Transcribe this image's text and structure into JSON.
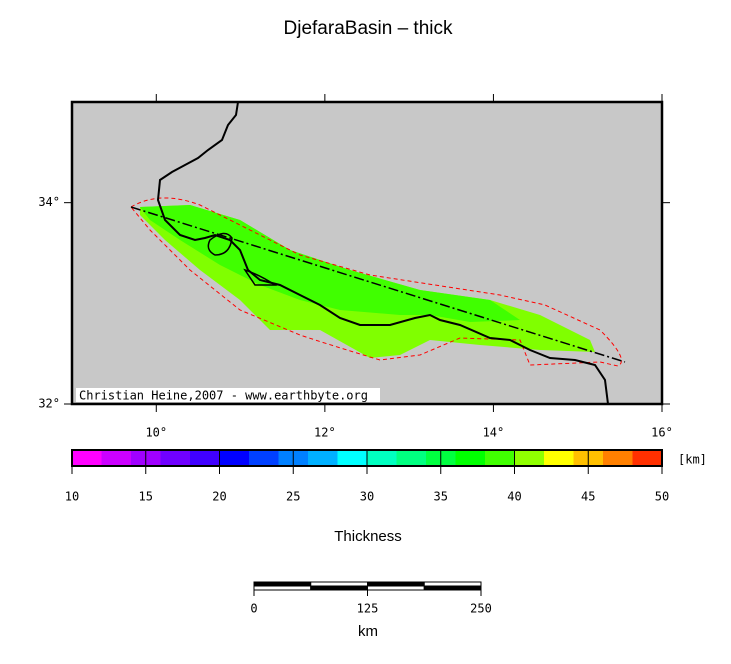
{
  "title": "DjefaraBasin – thick",
  "map": {
    "xlim": [
      9,
      16
    ],
    "ylim": [
      32,
      35
    ],
    "xticks": [
      {
        "value": 10,
        "label": "10°"
      },
      {
        "value": 12,
        "label": "12°"
      },
      {
        "value": 14,
        "label": "14°"
      },
      {
        "value": 16,
        "label": "16°"
      }
    ],
    "yticks": [
      {
        "value": 32,
        "label": "32°"
      },
      {
        "value": 34,
        "label": "34°"
      }
    ],
    "background": "#c8c8c8",
    "credit": "Christian Heine,2007 - www.earthbyte.org"
  },
  "colorbar": {
    "lim": [
      10,
      50
    ],
    "ticks": [
      10,
      15,
      20,
      25,
      30,
      35,
      40,
      45,
      50
    ],
    "unit": "[km]",
    "label": "Thickness",
    "colors": [
      "#ff00ff",
      "#cc00ff",
      "#a000ff",
      "#7000ff",
      "#4000ff",
      "#0000ff",
      "#0040ff",
      "#0080ff",
      "#00b0ff",
      "#00ffff",
      "#00ffc0",
      "#00ff80",
      "#00ff40",
      "#00ff00",
      "#40ff00",
      "#90ff00",
      "#ffff00",
      "#ffc000",
      "#ff8000",
      "#ff3000"
    ]
  },
  "scalebar": {
    "lim": [
      0,
      250
    ],
    "ticks": [
      0,
      125,
      250
    ],
    "unit": "km"
  }
}
